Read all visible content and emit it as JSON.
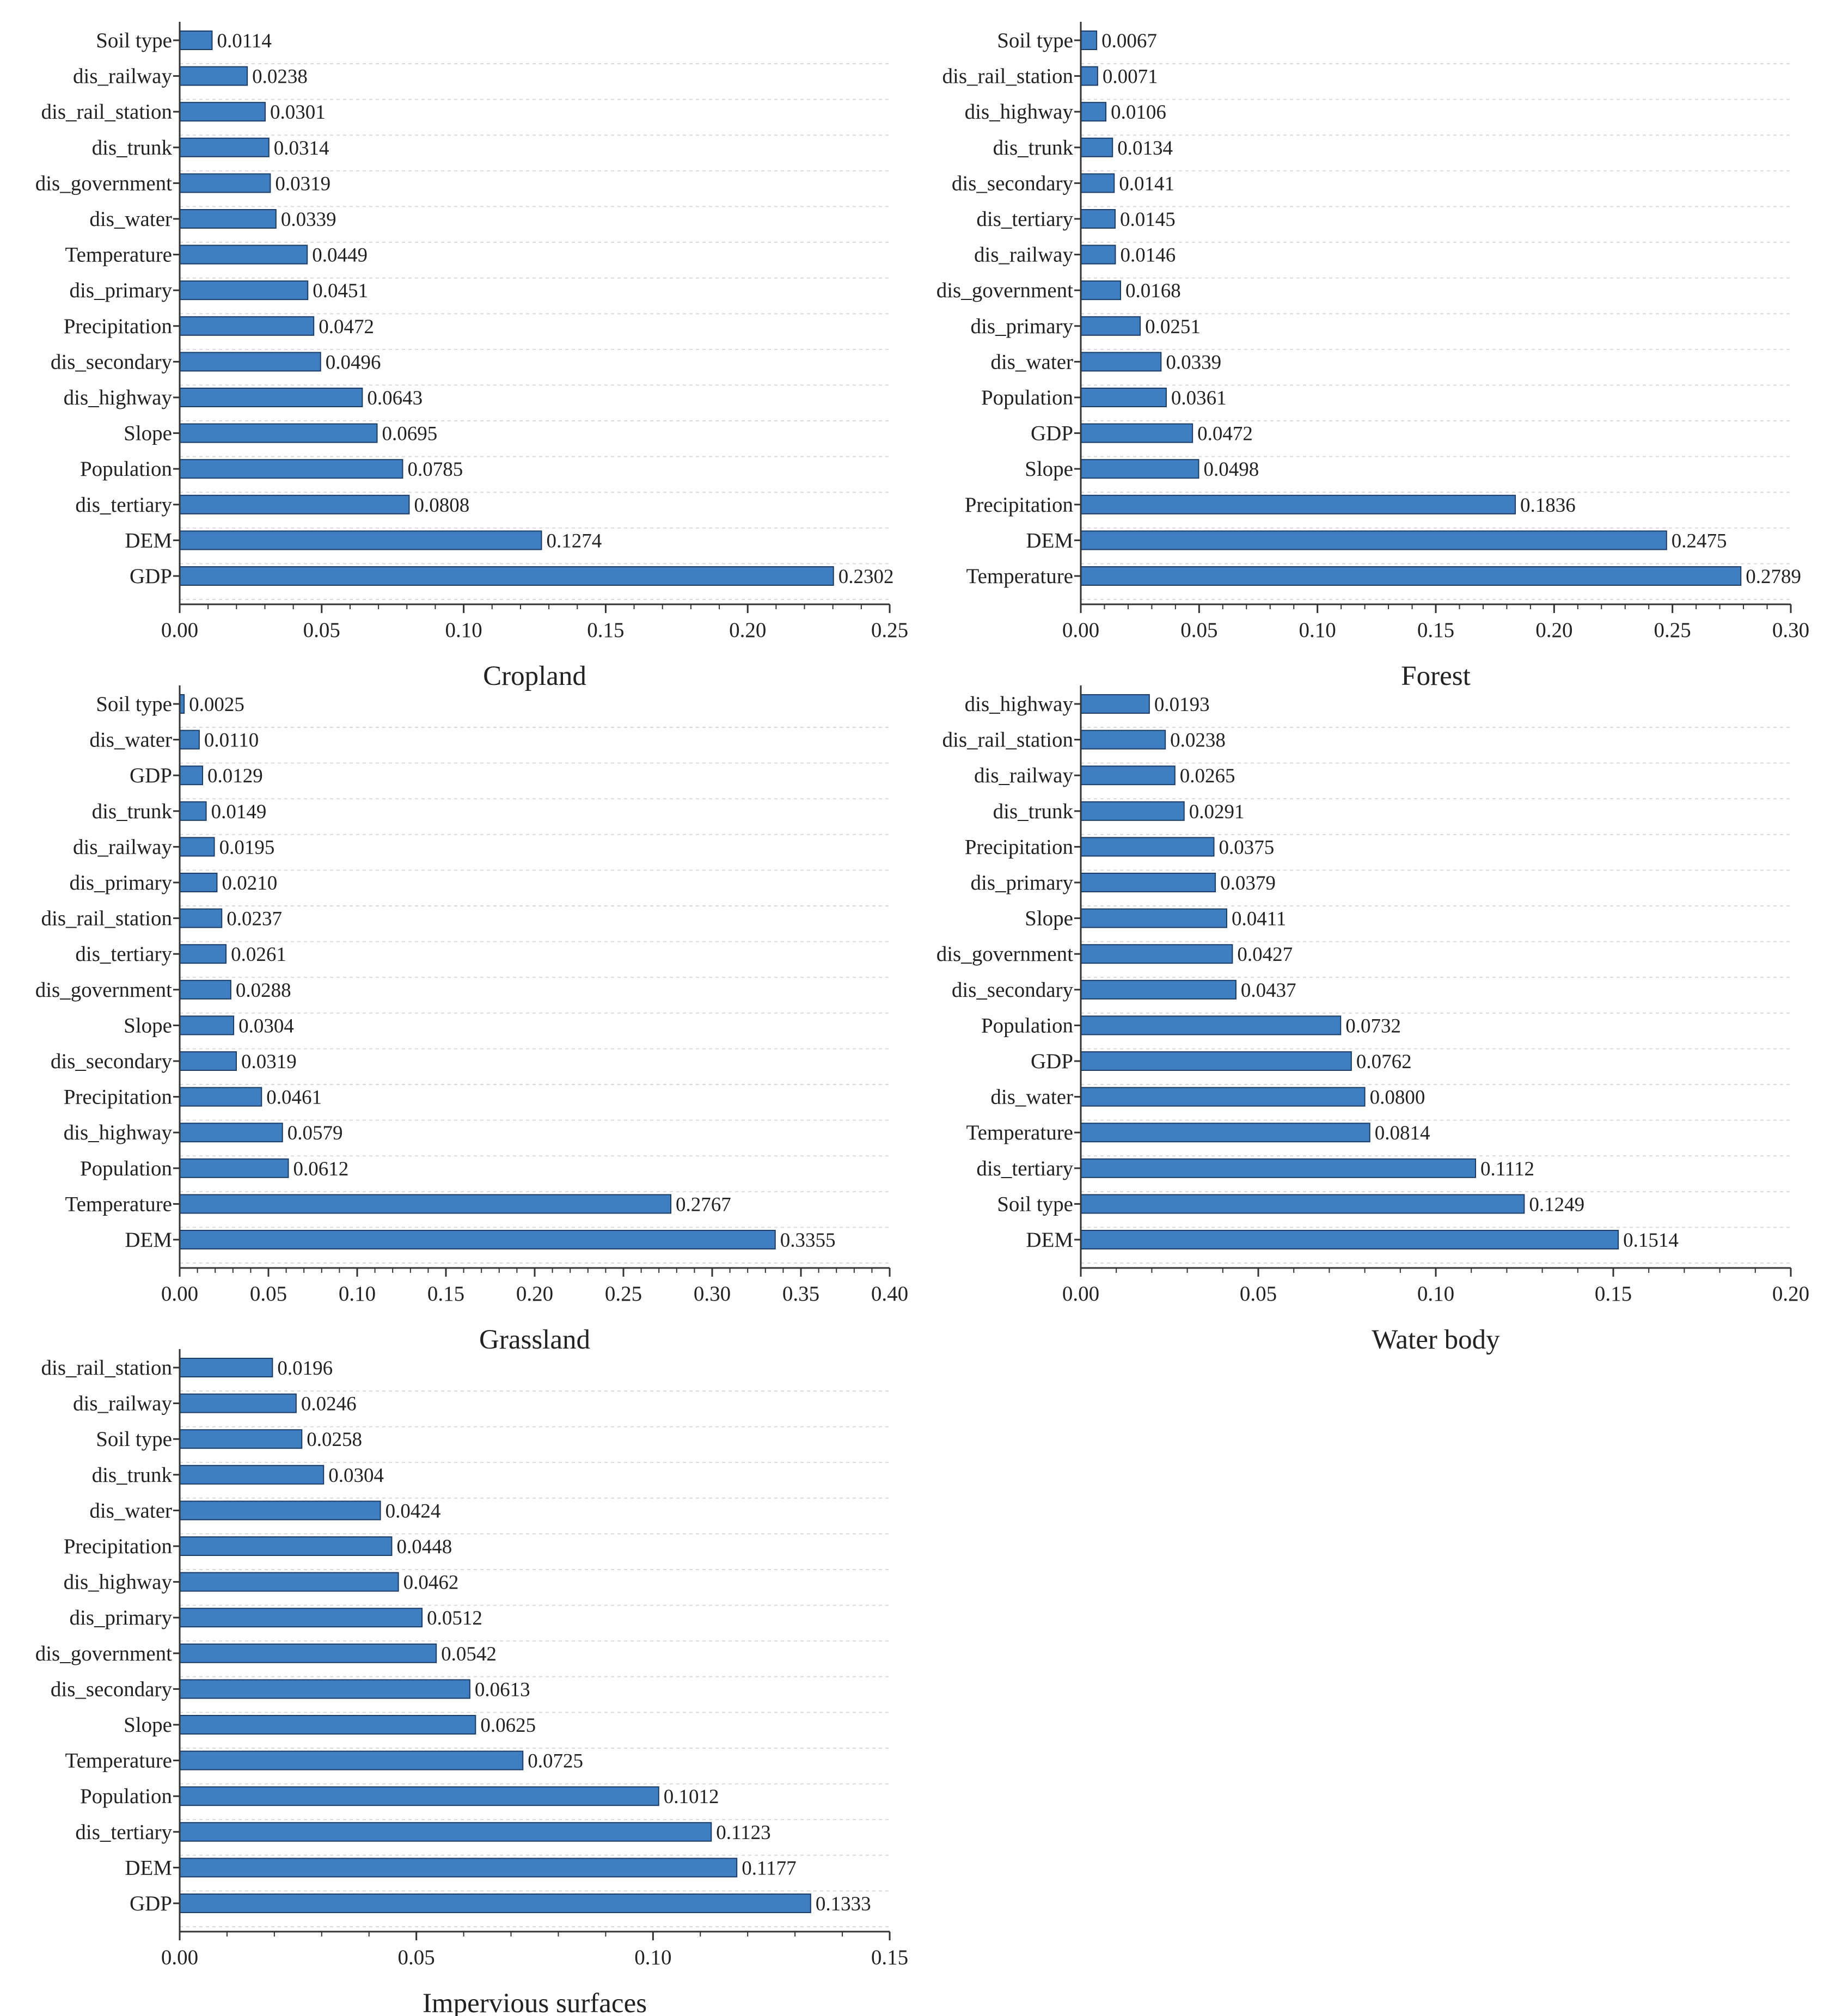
{
  "figure": {
    "colors": {
      "bar_fill": "#3f7fc1",
      "bar_stroke": "#1a3c66",
      "axis": "#333333",
      "grid": "#d9d9d9",
      "text": "#222222"
    }
  },
  "chart_data": [
    {
      "type": "bar",
      "orientation": "horizontal",
      "title": "Cropland",
      "categories": [
        "Soil type",
        "dis_railway",
        "dis_rail_station",
        "dis_trunk",
        "dis_government",
        "dis_water",
        "Temperature",
        "dis_primary",
        "Precipitation",
        "dis_secondary",
        "dis_highway",
        "Slope",
        "Population",
        "dis_tertiary",
        "DEM",
        "GDP"
      ],
      "values": [
        0.0114,
        0.0238,
        0.0301,
        0.0314,
        0.0319,
        0.0339,
        0.0449,
        0.0451,
        0.0472,
        0.0496,
        0.0643,
        0.0695,
        0.0785,
        0.0808,
        0.1274,
        0.2302
      ],
      "value_labels": [
        "0.0114",
        "0.0238",
        "0.0301",
        "0.0314",
        "0.0319",
        "0.0339",
        "0.0449",
        "0.0451",
        "0.0472",
        "0.0496",
        "0.0643",
        "0.0695",
        "0.0785",
        "0.0808",
        "0.1274",
        "0.2302"
      ],
      "xlim": [
        0,
        0.25
      ],
      "ticks": [
        0,
        0.05,
        0.1,
        0.15,
        0.2,
        0.25
      ],
      "tick_labels": [
        "0.00",
        "0.05",
        "0.10",
        "0.15",
        "0.20",
        "0.25"
      ],
      "grid": true
    },
    {
      "type": "bar",
      "orientation": "horizontal",
      "title": "Forest",
      "categories": [
        "Soil type",
        "dis_rail_station",
        "dis_highway",
        "dis_trunk",
        "dis_secondary",
        "dis_tertiary",
        "dis_railway",
        "dis_government",
        "dis_primary",
        "dis_water",
        "Population",
        "GDP",
        "Slope",
        "Precipitation",
        "DEM",
        "Temperature"
      ],
      "values": [
        0.0067,
        0.0071,
        0.0106,
        0.0134,
        0.0141,
        0.0145,
        0.0146,
        0.0168,
        0.0251,
        0.0339,
        0.0361,
        0.0472,
        0.0498,
        0.1836,
        0.2475,
        0.2789
      ],
      "value_labels": [
        "0.0067",
        "0.0071",
        "0.0106",
        "0.0134",
        "0.0141",
        "0.0145",
        "0.0146",
        "0.0168",
        "0.0251",
        "0.0339",
        "0.0361",
        "0.0472",
        "0.0498",
        "0.1836",
        "0.2475",
        "0.2789"
      ],
      "xlim": [
        0,
        0.3
      ],
      "ticks": [
        0,
        0.05,
        0.1,
        0.15,
        0.2,
        0.25,
        0.3
      ],
      "tick_labels": [
        "0.00",
        "0.05",
        "0.10",
        "0.15",
        "0.20",
        "0.25",
        "0.30"
      ],
      "grid": true
    },
    {
      "type": "bar",
      "orientation": "horizontal",
      "title": "Grassland",
      "categories": [
        "Soil type",
        "dis_water",
        "GDP",
        "dis_trunk",
        "dis_railway",
        "dis_primary",
        "dis_rail_station",
        "dis_tertiary",
        "dis_government",
        "Slope",
        "dis_secondary",
        "Precipitation",
        "dis_highway",
        "Population",
        "Temperature",
        "DEM"
      ],
      "values": [
        0.0025,
        0.011,
        0.0129,
        0.0149,
        0.0195,
        0.021,
        0.0237,
        0.0261,
        0.0288,
        0.0304,
        0.0319,
        0.0461,
        0.0579,
        0.0612,
        0.2767,
        0.3355
      ],
      "value_labels": [
        "0.0025",
        "0.0110",
        "0.0129",
        "0.0149",
        "0.0195",
        "0.0210",
        "0.0237",
        "0.0261",
        "0.0288",
        "0.0304",
        "0.0319",
        "0.0461",
        "0.0579",
        "0.0612",
        "0.2767",
        "0.3355"
      ],
      "xlim": [
        0,
        0.4
      ],
      "ticks": [
        0,
        0.05,
        0.1,
        0.15,
        0.2,
        0.25,
        0.3,
        0.35,
        0.4
      ],
      "tick_labels": [
        "0.00",
        "0.05",
        "0.10",
        "0.15",
        "0.20",
        "0.25",
        "0.30",
        "0.35",
        "0.40"
      ],
      "grid": true
    },
    {
      "type": "bar",
      "orientation": "horizontal",
      "title": "Water body",
      "categories": [
        "dis_highway",
        "dis_rail_station",
        "dis_railway",
        "dis_trunk",
        "Precipitation",
        "dis_primary",
        "Slope",
        "dis_government",
        "dis_secondary",
        "Population",
        "GDP",
        "dis_water",
        "Temperature",
        "dis_tertiary",
        "Soil type",
        "DEM"
      ],
      "values": [
        0.0193,
        0.0238,
        0.0265,
        0.0291,
        0.0375,
        0.0379,
        0.0411,
        0.0427,
        0.0437,
        0.0732,
        0.0762,
        0.08,
        0.0814,
        0.1112,
        0.1249,
        0.1514
      ],
      "value_labels": [
        "0.0193",
        "0.0238",
        "0.0265",
        "0.0291",
        "0.0375",
        "0.0379",
        "0.0411",
        "0.0427",
        "0.0437",
        "0.0732",
        "0.0762",
        "0.0800",
        "0.0814",
        "0.1112",
        "0.1249",
        "0.1514"
      ],
      "xlim": [
        0,
        0.2
      ],
      "ticks": [
        0,
        0.05,
        0.1,
        0.15,
        0.2
      ],
      "tick_labels": [
        "0.00",
        "0.05",
        "0.10",
        "0.15",
        "0.20"
      ],
      "grid": true
    },
    {
      "type": "bar",
      "orientation": "horizontal",
      "title": "Impervious surfaces",
      "categories": [
        "dis_rail_station",
        "dis_railway",
        "Soil type",
        "dis_trunk",
        "dis_water",
        "Precipitation",
        "dis_highway",
        "dis_primary",
        "dis_government",
        "dis_secondary",
        "Slope",
        "Temperature",
        "Population",
        "dis_tertiary",
        "DEM",
        "GDP"
      ],
      "values": [
        0.0196,
        0.0246,
        0.0258,
        0.0304,
        0.0424,
        0.0448,
        0.0462,
        0.0512,
        0.0542,
        0.0613,
        0.0625,
        0.0725,
        0.1012,
        0.1123,
        0.1177,
        0.1333
      ],
      "value_labels": [
        "0.0196",
        "0.0246",
        "0.0258",
        "0.0304",
        "0.0424",
        "0.0448",
        "0.0462",
        "0.0512",
        "0.0542",
        "0.0613",
        "0.0625",
        "0.0725",
        "0.1012",
        "0.1123",
        "0.1177",
        "0.1333"
      ],
      "xlim": [
        0,
        0.15
      ],
      "ticks": [
        0,
        0.05,
        0.1,
        0.15
      ],
      "tick_labels": [
        "0.00",
        "0.05",
        "0.10",
        "0.15"
      ],
      "grid": true
    }
  ]
}
